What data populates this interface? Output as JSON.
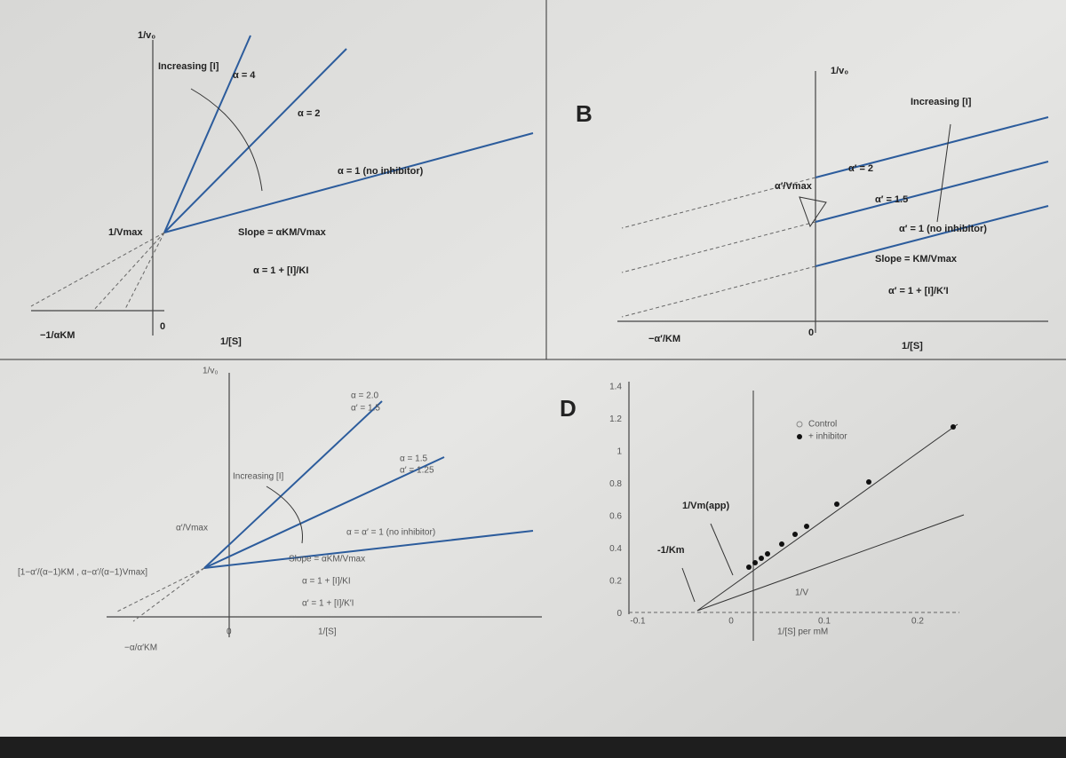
{
  "panel_labels": [
    "B",
    "D"
  ],
  "panel_a": {
    "y_axis": "1/v₀",
    "arrow": "Increasing [I]",
    "lines": [
      "α = 4",
      "α = 2",
      "α = 1 (no inhibitor)"
    ],
    "intercept_y": "1/Vmax",
    "slope": "Slope = αKM/Vmax",
    "alpha": "α = 1 + [I]/KI",
    "intercept_x": "−1/αKM",
    "origin": "0",
    "x_axis": "1/[S]"
  },
  "panel_b": {
    "y_axis": "1/v₀",
    "arrow": "Increasing [I]",
    "lines": [
      "α′ = 2",
      "α′ = 1.5",
      "α′ = 1 (no inhibitor)"
    ],
    "intercept_y": "α′/Vmax",
    "slope": "Slope = KM/Vmax",
    "alpha": "α′ = 1 + [I]/K′I",
    "intercept_x": "−α′/KM",
    "origin": "0",
    "x_axis": "1/[S]"
  },
  "panel_c": {
    "y_axis": "1/v₀",
    "lines": [
      "α = 2.0",
      "α′ = 1.5",
      "α = 1.5",
      "α′ = 1.25",
      "α = α′ = 1 (no inhibitor)"
    ],
    "arrow": "Increasing [I]",
    "intercept_y": "α′/Vmax",
    "slope": "Slope = αKM/Vmax",
    "alpha": "α = 1 + [I]/KI",
    "alpha_prime": "α′ = 1 + [I]/K′I",
    "intersection": "[1−α′/(α−1)KM , α−α′/(α−1)Vmax]",
    "intercept_x": "−α/α′KM",
    "origin": "0",
    "x_axis": "1/[S]"
  },
  "panel_d": {
    "y_ticks": [
      "1.4",
      "1.2",
      "1",
      "0.8",
      "0.6",
      "0.4",
      "0.2",
      "0"
    ],
    "x_ticks": [
      "-0.1",
      "0",
      "0.1",
      "0.2"
    ],
    "legend": [
      "Control",
      "+ inhibitor"
    ],
    "label_vm": "1/Vm(app)",
    "label_km": "-1/Km",
    "label_v": "1/V",
    "x_axis": "1/[S] per mM"
  }
}
